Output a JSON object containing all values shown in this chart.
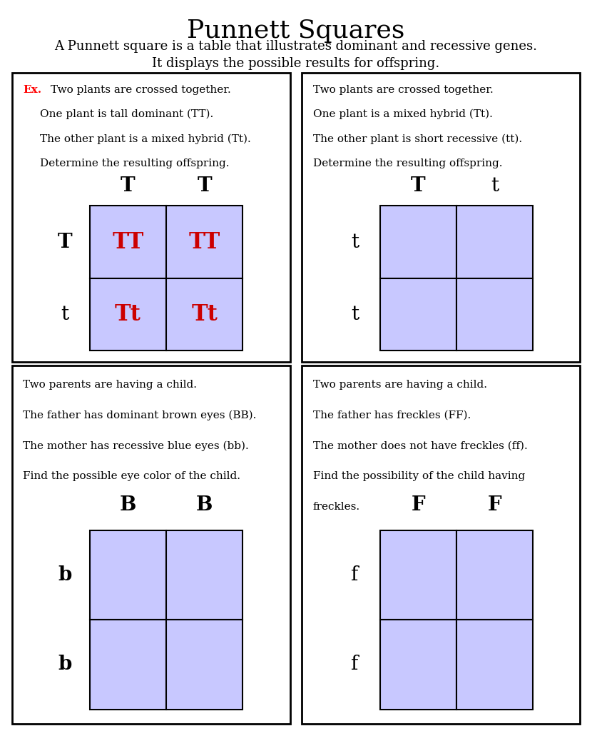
{
  "title": "Punnett Squares",
  "subtitle_line1": "A Punnett square is a table that illustrates dominant and recessive genes.",
  "subtitle_line2": "It displays the possible results for offspring.",
  "cell_color": "#c8c8ff",
  "border_color": "#000000",
  "background_color": "#ffffff",
  "fig_width": 8.3,
  "fig_height": 10.24,
  "panels": [
    {
      "id": 0,
      "col": 0,
      "row": 0,
      "has_ex": true,
      "text_lines": [
        "Two plants are crossed together.",
        "One plant is tall dominant (TT).",
        "The other plant is a mixed hybrid (Tt).",
        "Determine the resulting offspring."
      ],
      "col_labels": [
        "T",
        "T"
      ],
      "row_labels": [
        "T",
        "t"
      ],
      "col_label_bold": [
        true,
        true
      ],
      "row_label_bold": [
        true,
        false
      ],
      "cell_content": [
        [
          "TT",
          "TT"
        ],
        [
          "Tt",
          "Tt"
        ]
      ],
      "cell_content_color": "#cc0000",
      "cell_content_show": true
    },
    {
      "id": 1,
      "col": 1,
      "row": 0,
      "has_ex": false,
      "text_lines": [
        "Two plants are crossed together.",
        "One plant is a mixed hybrid (Tt).",
        "The other plant is short recessive (tt).",
        "Determine the resulting offspring."
      ],
      "col_labels": [
        "T",
        "t"
      ],
      "row_labels": [
        "t",
        "t"
      ],
      "col_label_bold": [
        true,
        false
      ],
      "row_label_bold": [
        false,
        false
      ],
      "cell_content": [
        [
          "",
          ""
        ],
        [
          "",
          ""
        ]
      ],
      "cell_content_color": "#cc0000",
      "cell_content_show": false
    },
    {
      "id": 2,
      "col": 0,
      "row": 1,
      "has_ex": false,
      "text_lines": [
        "Two parents are having a child.",
        "The father has dominant brown eyes (BB).",
        "The mother has recessive blue eyes (bb).",
        "Find the possible eye color of the child."
      ],
      "col_labels": [
        "B",
        "B"
      ],
      "row_labels": [
        "b",
        "b"
      ],
      "col_label_bold": [
        true,
        true
      ],
      "row_label_bold": [
        true,
        true
      ],
      "cell_content": [
        [
          "",
          ""
        ],
        [
          "",
          ""
        ]
      ],
      "cell_content_color": "#cc0000",
      "cell_content_show": false
    },
    {
      "id": 3,
      "col": 1,
      "row": 1,
      "has_ex": false,
      "text_lines": [
        "Two parents are having a child.",
        "The father has freckles (FF).",
        "The mother does not have freckles (ff).",
        "Find the possibility of the child having",
        "freckles."
      ],
      "col_labels": [
        "F",
        "F"
      ],
      "row_labels": [
        "f",
        "f"
      ],
      "col_label_bold": [
        true,
        true
      ],
      "row_label_bold": [
        false,
        false
      ],
      "cell_content": [
        [
          "",
          ""
        ],
        [
          "",
          ""
        ]
      ],
      "cell_content_color": "#cc0000",
      "cell_content_show": false
    }
  ]
}
